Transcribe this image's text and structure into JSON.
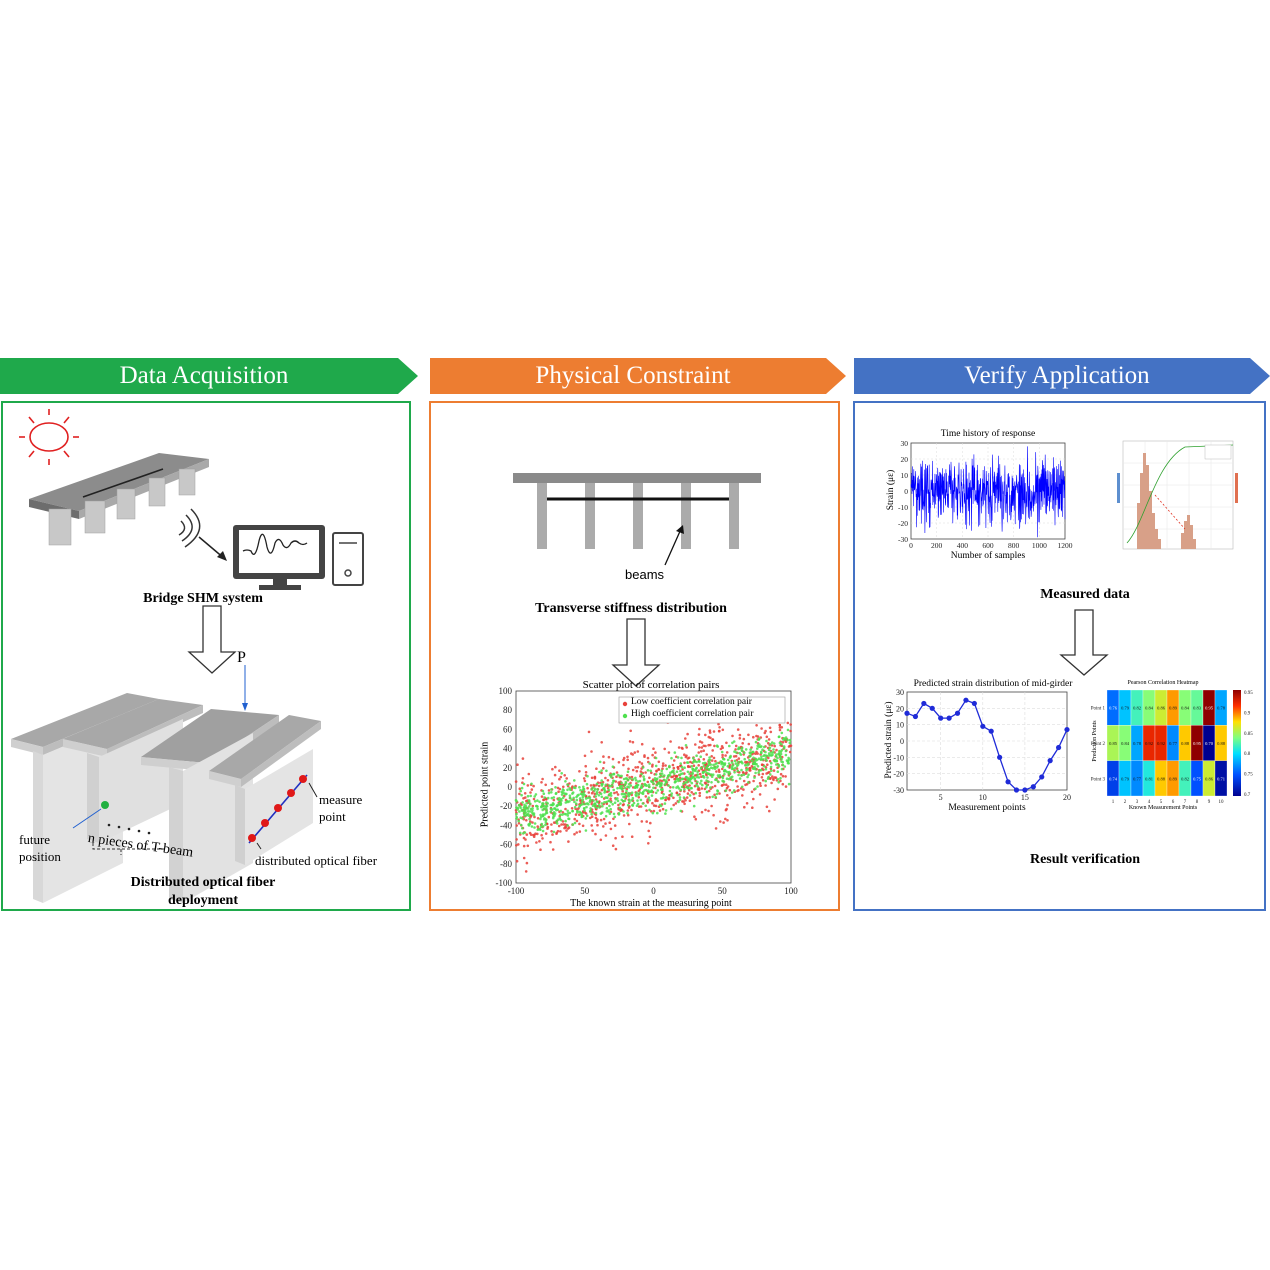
{
  "banners": [
    {
      "title": "Data  Acquisition",
      "color": "#1fa94b"
    },
    {
      "title": "Physical Constraint",
      "color": "#ed7d31"
    },
    {
      "title": "Verify Application",
      "color": "#4472c4"
    }
  ],
  "panel1": {
    "caption_top": "Bridge SHM system",
    "label_p": "P",
    "label_measure": "measure\npoint",
    "label_future": "future\nposition",
    "label_npieces": "n pieces of T-beam",
    "label_fiber": "distributed optical fiber",
    "caption_bottom_line1": "Distributed optical fiber",
    "caption_bottom_line2": "deployment"
  },
  "panel2": {
    "label_beams": "beams",
    "caption_top": "Transverse stiffness distribution",
    "scatter": {
      "title": "Scatter plot of correlation pairs",
      "xlabel": "The known strain at the measuring point",
      "ylabel": "Predicted point strain",
      "legend": [
        "Low coefficient correlation pair",
        "High coefficient correlation pair"
      ],
      "xticks": [
        "-100",
        "50",
        "0",
        "50",
        "100"
      ],
      "yticks": [
        "100",
        "80",
        "60",
        "40",
        "20",
        "0",
        "-20",
        "-40",
        "-60",
        "-80",
        "-100"
      ]
    }
  },
  "panel3": {
    "caption_measured": "Measured data",
    "caption_result": "Result verification",
    "time_history": {
      "title": "Time history of response",
      "xlabel": "Number of samples",
      "ylabel": "Strain (με)",
      "xticks": [
        "0",
        "200",
        "400",
        "600",
        "800",
        "1000",
        "1200"
      ],
      "yticks": [
        "30",
        "20",
        "10",
        "0",
        "-10",
        "-20",
        "-30"
      ]
    },
    "predicted": {
      "title": "Predicted strain distribution of mid-girder",
      "xlabel": "Measurement points",
      "ylabel": "Predicted strain (με)",
      "xticks": [
        "5",
        "10",
        "15",
        "20"
      ],
      "yticks": [
        "30",
        "20",
        "10",
        "0",
        "-10",
        "-20",
        "-30"
      ]
    },
    "heatmap": {
      "title": "Pearson Correlation Heatmap",
      "xlabel": "Known Measurement Points",
      "ylabel": "Prediction Points",
      "rows": [
        "Point 1",
        "Point 2",
        "Point 3"
      ],
      "cols": [
        "1",
        "2",
        "3",
        "4",
        "5",
        "6",
        "7",
        "8",
        "9",
        "10"
      ],
      "colorbar": [
        "0.95",
        "0.9",
        "0.85",
        "0.8",
        "0.75",
        "0.7"
      ]
    }
  },
  "chart_data": [
    {
      "type": "scatter",
      "title": "Scatter plot of correlation pairs",
      "xlabel": "The known strain at the measuring point",
      "ylabel": "Predicted point strain",
      "xlim": [
        -100,
        100
      ],
      "ylim": [
        -100,
        100
      ],
      "series": [
        {
          "name": "Low coefficient correlation pair",
          "color": "#e8413a",
          "trend": [
            [
              -100,
              -30
            ],
            [
              100,
              35
            ]
          ],
          "spread": 22
        },
        {
          "name": "High coefficient correlation pair",
          "color": "#4ee04e",
          "trend": [
            [
              -100,
              -30
            ],
            [
              100,
              35
            ]
          ],
          "spread": 12
        }
      ]
    },
    {
      "type": "line",
      "title": "Time history of response",
      "xlabel": "Number of samples",
      "ylabel": "Strain (με)",
      "xlim": [
        0,
        1200
      ],
      "ylim": [
        -30,
        30
      ],
      "color": "#0000ff"
    },
    {
      "type": "line",
      "title": "Predicted strain distribution of mid-girder",
      "xlabel": "Measurement points",
      "ylabel": "Predicted strain (με)",
      "xlim": [
        1,
        20
      ],
      "ylim": [
        -30,
        30
      ],
      "x": [
        1,
        2,
        3,
        4,
        5,
        6,
        7,
        8,
        9,
        10,
        11,
        12,
        13,
        14,
        15,
        16,
        17,
        18,
        19,
        20
      ],
      "values": [
        17,
        15,
        23,
        20,
        14,
        14,
        17,
        25,
        23,
        9,
        6,
        -10,
        -25,
        -30,
        -30,
        -28,
        -22,
        -12,
        -4,
        7
      ],
      "color": "#1f2bd8"
    },
    {
      "type": "heatmap",
      "title": "Pearson Correlation Heatmap",
      "rows": [
        "Point 1",
        "Point 2",
        "Point 3"
      ],
      "cols": [
        "1",
        "2",
        "3",
        "4",
        "5",
        "6",
        "7",
        "8",
        "9",
        "10"
      ],
      "values": [
        [
          0.76,
          0.79,
          0.82,
          0.84,
          0.86,
          0.89,
          0.84,
          0.83,
          0.95,
          0.78
        ],
        [
          0.85,
          0.84,
          0.78,
          0.92,
          0.92,
          0.77,
          0.88,
          0.95,
          0.7,
          0.88
        ],
        [
          0.74,
          0.79,
          0.77,
          0.81,
          0.88,
          0.89,
          0.82,
          0.75,
          0.86,
          0.71
        ]
      ],
      "vmin": 0.7,
      "vmax": 0.95
    }
  ]
}
